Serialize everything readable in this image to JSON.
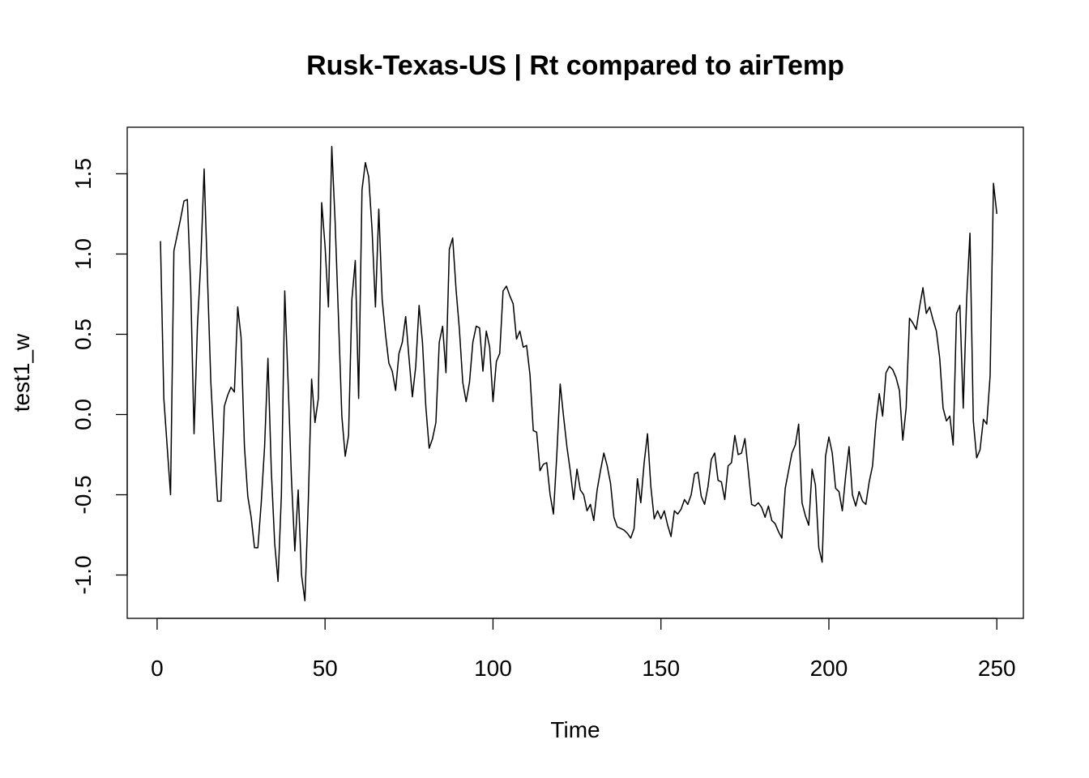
{
  "chart_data": {
    "type": "line",
    "title": "Rusk-Texas-US | Rt compared to airTemp",
    "xlabel": "Time",
    "ylabel": "test1_w",
    "xlim": [
      -8.9,
      257.9
    ],
    "ylim": [
      -1.27,
      1.79
    ],
    "x_ticks": [
      0,
      50,
      100,
      150,
      200,
      250
    ],
    "x_tick_labels": [
      "0",
      "50",
      "100",
      "150",
      "200",
      "250"
    ],
    "y_ticks": [
      -1.0,
      -0.5,
      0.0,
      0.5,
      1.0,
      1.5
    ],
    "y_tick_labels": [
      "-1.0",
      "-0.5",
      "0.0",
      "0.5",
      "1.0",
      "1.5"
    ],
    "grid": false,
    "legend": "none",
    "series": [
      {
        "color": "#000000",
        "x_start": 1,
        "x_step": 1,
        "values": [
          1.08,
          0.1,
          -0.2,
          -0.5,
          1.02,
          1.12,
          1.22,
          1.33,
          1.34,
          0.8,
          -0.12,
          0.55,
          0.95,
          1.53,
          0.85,
          0.2,
          -0.2,
          -0.54,
          -0.54,
          0.05,
          0.12,
          0.17,
          0.14,
          0.67,
          0.48,
          -0.2,
          -0.51,
          -0.64,
          -0.83,
          -0.83,
          -0.55,
          -0.2,
          0.35,
          -0.35,
          -0.8,
          -1.04,
          -0.5,
          0.77,
          0.2,
          -0.4,
          -0.85,
          -0.47,
          -1.0,
          -1.16,
          -0.55,
          0.22,
          -0.05,
          0.1,
          1.32,
          1.05,
          0.67,
          1.67,
          1.2,
          0.6,
          -0.01,
          -0.26,
          -0.13,
          0.72,
          0.96,
          0.1,
          1.4,
          1.57,
          1.48,
          1.15,
          0.67,
          1.28,
          0.72,
          0.5,
          0.32,
          0.27,
          0.15,
          0.38,
          0.45,
          0.61,
          0.35,
          0.11,
          0.3,
          0.68,
          0.45,
          0.05,
          -0.21,
          -0.15,
          -0.05,
          0.45,
          0.55,
          0.26,
          1.03,
          1.1,
          0.78,
          0.53,
          0.2,
          0.08,
          0.2,
          0.45,
          0.55,
          0.54,
          0.27,
          0.52,
          0.42,
          0.08,
          0.33,
          0.38,
          0.77,
          0.8,
          0.74,
          0.69,
          0.47,
          0.52,
          0.42,
          0.43,
          0.25,
          -0.1,
          -0.11,
          -0.35,
          -0.31,
          -0.3,
          -0.5,
          -0.62,
          -0.25,
          0.19,
          -0.01,
          -0.2,
          -0.35,
          -0.53,
          -0.34,
          -0.47,
          -0.5,
          -0.6,
          -0.56,
          -0.66,
          -0.47,
          -0.35,
          -0.24,
          -0.32,
          -0.43,
          -0.64,
          -0.7,
          -0.71,
          -0.72,
          -0.74,
          -0.77,
          -0.71,
          -0.4,
          -0.55,
          -0.3,
          -0.12,
          -0.45,
          -0.65,
          -0.6,
          -0.65,
          -0.6,
          -0.69,
          -0.76,
          -0.6,
          -0.62,
          -0.59,
          -0.53,
          -0.56,
          -0.5,
          -0.37,
          -0.36,
          -0.51,
          -0.56,
          -0.45,
          -0.28,
          -0.24,
          -0.41,
          -0.42,
          -0.53,
          -0.32,
          -0.3,
          -0.13,
          -0.25,
          -0.24,
          -0.15,
          -0.35,
          -0.56,
          -0.57,
          -0.55,
          -0.58,
          -0.64,
          -0.57,
          -0.66,
          -0.68,
          -0.73,
          -0.77,
          -0.46,
          -0.35,
          -0.24,
          -0.19,
          -0.06,
          -0.55,
          -0.63,
          -0.69,
          -0.34,
          -0.44,
          -0.83,
          -0.92,
          -0.26,
          -0.14,
          -0.24,
          -0.46,
          -0.48,
          -0.6,
          -0.38,
          -0.2,
          -0.5,
          -0.57,
          -0.48,
          -0.54,
          -0.56,
          -0.42,
          -0.32,
          -0.05,
          0.13,
          -0.01,
          0.26,
          0.3,
          0.28,
          0.23,
          0.15,
          -0.16,
          0.04,
          0.6,
          0.57,
          0.53,
          0.67,
          0.79,
          0.63,
          0.67,
          0.59,
          0.52,
          0.35,
          0.04,
          -0.04,
          -0.01,
          -0.19,
          0.63,
          0.68,
          0.04,
          0.71,
          1.13,
          -0.04,
          -0.27,
          -0.22,
          -0.03,
          -0.06,
          0.24,
          1.44,
          1.25
        ]
      }
    ]
  }
}
